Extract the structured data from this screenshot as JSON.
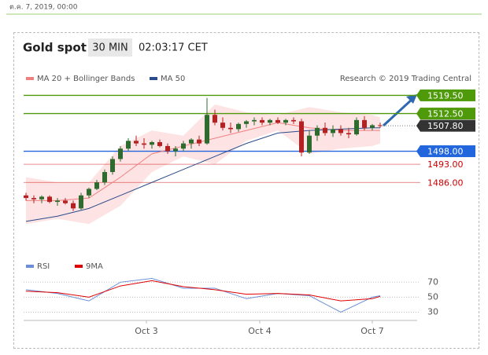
{
  "chart_data": {
    "type": "candlestick",
    "date": "ต.ค. 7, 2019, 00:00",
    "title": "Gold spot",
    "timeframe": "30 MIN",
    "time": "02:03:17 CET",
    "credit": "Research © 2019 Trading Central",
    "xlim": [
      -0.3,
      49.7
    ],
    "xticks": [
      {
        "value": 15.3,
        "label": "Oct 3"
      },
      {
        "value": 29.7,
        "label": "Oct 4"
      },
      {
        "value": 44,
        "label": "Oct 7"
      }
    ],
    "ylim": [
      1462.5,
      1529
    ],
    "up_color": "#2f6b2f",
    "down_color": "#b22222",
    "candles": [
      [
        1481,
        1482,
        1479,
        1480
      ],
      [
        1480,
        1481,
        1478,
        1479.5
      ],
      [
        1479.5,
        1481,
        1478,
        1480.5
      ],
      [
        1480.5,
        1481,
        1478,
        1478.5
      ],
      [
        1478.5,
        1480,
        1477,
        1479
      ],
      [
        1479,
        1480,
        1477.5,
        1478
      ],
      [
        1478,
        1479,
        1475,
        1476
      ],
      [
        1476,
        1482,
        1475.5,
        1481
      ],
      [
        1481,
        1484,
        1480,
        1483.5
      ],
      [
        1483.5,
        1487,
        1483,
        1486
      ],
      [
        1486,
        1491,
        1485,
        1490
      ],
      [
        1490,
        1496,
        1489,
        1495
      ],
      [
        1495,
        1500,
        1494,
        1499
      ],
      [
        1499,
        1503,
        1498,
        1502
      ],
      [
        1502,
        1504,
        1500,
        1501
      ],
      [
        1501,
        1503,
        1499,
        1500.5
      ],
      [
        1500.5,
        1502,
        1499,
        1501.5
      ],
      [
        1501.5,
        1502.5,
        1499.5,
        1500
      ],
      [
        1500,
        1501,
        1497,
        1498
      ],
      [
        1498,
        1500,
        1496,
        1499
      ],
      [
        1499,
        1502,
        1498,
        1501
      ],
      [
        1501,
        1503,
        1499,
        1502.5
      ],
      [
        1502.5,
        1504,
        1500,
        1501
      ],
      [
        1501,
        1518.5,
        1500.5,
        1512
      ],
      [
        1512,
        1514,
        1508,
        1509
      ],
      [
        1509,
        1511,
        1506,
        1507
      ],
      [
        1507,
        1509,
        1505,
        1506.5
      ],
      [
        1506.5,
        1509,
        1505.5,
        1508.5
      ],
      [
        1508.5,
        1510,
        1507,
        1509.5
      ],
      [
        1509.5,
        1511,
        1508,
        1510
      ],
      [
        1510,
        1511,
        1508,
        1509
      ],
      [
        1509,
        1510.5,
        1508,
        1510
      ],
      [
        1510,
        1511,
        1508.5,
        1509
      ],
      [
        1509,
        1510.5,
        1508,
        1510
      ],
      [
        1510,
        1511,
        1508.5,
        1509.5
      ],
      [
        1509.5,
        1510.5,
        1496,
        1497.5
      ],
      [
        1497.5,
        1506,
        1497,
        1504
      ],
      [
        1504,
        1508,
        1502,
        1507
      ],
      [
        1507,
        1509,
        1504,
        1505
      ],
      [
        1505,
        1508,
        1503.5,
        1506.5
      ],
      [
        1506.5,
        1508,
        1504,
        1505
      ],
      [
        1505,
        1507,
        1503,
        1504.5
      ],
      [
        1504.5,
        1511,
        1504,
        1510
      ],
      [
        1510,
        1511.5,
        1506,
        1507
      ],
      [
        1507,
        1508.5,
        1506,
        1508
      ],
      [
        1508,
        1509,
        1507,
        1507.8
      ]
    ],
    "line_x": [
      0,
      4,
      8,
      12,
      16,
      20,
      24,
      28,
      32,
      36,
      40,
      44,
      45
    ],
    "bands": {
      "color": "#fde3e3",
      "upper": [
        1488,
        1486,
        1486,
        1500,
        1506,
        1504,
        1516,
        1513,
        1512,
        1515,
        1513,
        1512,
        1511
      ],
      "lower": [
        1470,
        1472,
        1470,
        1477,
        1490,
        1496,
        1493,
        1502,
        1506,
        1497,
        1499,
        1500,
        1501
      ]
    },
    "series": [
      {
        "name": "MA 20 + Bollinger Bands",
        "color": "#f08080",
        "values": [
          1479,
          1479,
          1480,
          1488,
          1497,
          1500,
          1503,
          1506,
          1509,
          1507,
          1506,
          1506,
          1506
        ]
      },
      {
        "name": "MA 50",
        "color": "#2b4c8c",
        "values": [
          1471,
          1473,
          1476,
          1481,
          1486,
          1491,
          1496,
          1501,
          1505,
          1506,
          1506.5,
          1507,
          1507
        ]
      }
    ],
    "levels": [
      {
        "value": 1519.5,
        "label": "1519.50",
        "color": "#4f9a0a",
        "style": "box"
      },
      {
        "value": 1512.5,
        "label": "1512.50",
        "color": "#4f9a0a",
        "style": "box"
      },
      {
        "value": 1507.8,
        "label": "1507.80",
        "color": "#333333",
        "style": "current"
      },
      {
        "value": 1498,
        "label": "1498.00",
        "color": "#2266dd",
        "style": "box"
      },
      {
        "value": 1493,
        "label": "1493.00",
        "color": "#cc0000",
        "style": "text"
      },
      {
        "value": 1486,
        "label": "1486.00",
        "color": "#cc0000",
        "style": "text"
      }
    ],
    "rsi": {
      "ylim": [
        20,
        85
      ],
      "yticks": [
        30,
        50,
        70
      ],
      "series": [
        {
          "name": "RSI",
          "color": "#6a8fd8",
          "values": [
            60,
            55,
            45,
            70,
            75,
            62,
            62,
            48,
            55,
            52,
            30,
            50,
            52
          ]
        },
        {
          "name": "9MA",
          "color": "#e00000",
          "values": [
            58,
            56,
            50,
            65,
            72,
            64,
            60,
            54,
            55,
            53,
            45,
            48,
            51
          ]
        }
      ]
    }
  }
}
